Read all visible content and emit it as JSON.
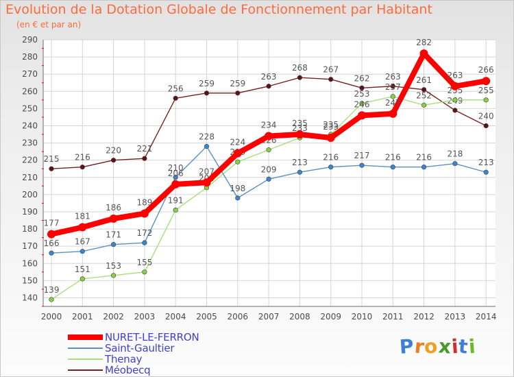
{
  "header": {
    "title": "Evolution de la Dotation Globale de Fonctionnement par Habitant",
    "subtitle": "(en € et par an)"
  },
  "logo": {
    "text": "Proxiti",
    "letters": [
      "P",
      "r",
      "o",
      "x",
      "i",
      "t",
      "i"
    ],
    "colors": [
      "#3d7fd4",
      "#ef7b20",
      "#f0a020",
      "#4a9a2a",
      "#d42d2d",
      "#3d7fd4",
      "#6db82c"
    ]
  },
  "chart_data": {
    "type": "line",
    "title": "Evolution de la Dotation Globale de Fonctionnement par Habitant",
    "subtitle": "(en € et par an)",
    "xlabel": "",
    "ylabel": "",
    "x": [
      "2000",
      "2001",
      "2002",
      "2003",
      "2004",
      "2005",
      "2006",
      "2007",
      "2008",
      "2009",
      "2010",
      "2011",
      "2012",
      "2013",
      "2014"
    ],
    "ylim": [
      135,
      290
    ],
    "yticks": [
      140,
      150,
      160,
      170,
      180,
      190,
      200,
      210,
      220,
      230,
      240,
      250,
      260,
      270,
      280,
      290
    ],
    "grid": true,
    "legend_position": "bottom-left",
    "series": [
      {
        "name": "Méobecq",
        "color": "#7a1f1f",
        "marker": "#5a1414",
        "values": [
          215,
          216,
          220,
          221,
          256,
          259,
          259,
          263,
          268,
          267,
          262,
          263,
          261,
          249,
          240
        ]
      },
      {
        "name": "Thenay",
        "color": "#a6e07a",
        "marker": "#86d046",
        "values": [
          139,
          151,
          153,
          155,
          191,
          204,
          219,
          226,
          233,
          235,
          253,
          257,
          252,
          255,
          255
        ]
      },
      {
        "name": "Saint-Gaultier",
        "color": "#5a90c4",
        "marker": "#3a86c8",
        "values": [
          166,
          167,
          171,
          172,
          210,
          228,
          198,
          209,
          213,
          216,
          217,
          216,
          216,
          218,
          213
        ]
      },
      {
        "name": "NURET-LE-FERRON",
        "color": "#ff0000",
        "marker": "#ff0000",
        "values": [
          177,
          181,
          186,
          189,
          206,
          207,
          224,
          234,
          235,
          233,
          246,
          247,
          282,
          263,
          266
        ]
      }
    ],
    "legend_order": [
      "NURET-LE-FERRON",
      "Saint-Gaultier",
      "Thenay",
      "Méobecq"
    ]
  }
}
